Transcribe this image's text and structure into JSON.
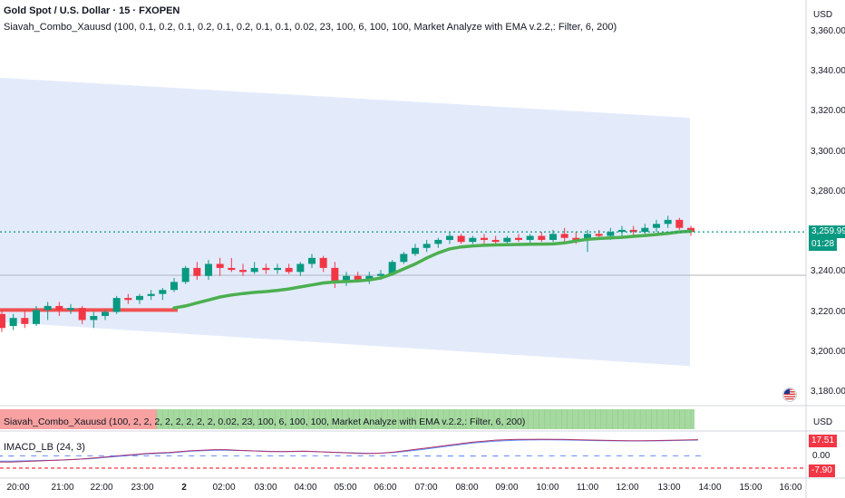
{
  "header": {
    "symbol_title": "Gold Spot / U.S. Dollar · 15 · FXOPEN",
    "indicator_legend": "Siavah_Combo_Xauusd (100, 0.1, 0.2, 0.1, 0.2, 0.1, 0.2, 0.1, 0.1, 0.02, 23, 100, 6, 100, 100, Market Analyze with EMA v.2.2,: Filter, 6, 200)"
  },
  "price_axis": {
    "currency": "USD",
    "ticks": [
      "3,360.00",
      "3,340.00",
      "3,320.00",
      "3,300.00",
      "3,280.00",
      "3,260.00",
      "3,240.00",
      "3,220.00",
      "3,200.00",
      "3,180.00"
    ],
    "last_price": "3,259.99",
    "countdown": "01:28",
    "last_price_color": "#089981"
  },
  "time_axis": {
    "labels": [
      "20:00",
      "21:00",
      "22:00",
      "23:00",
      "2",
      "02:00",
      "03:00",
      "04:00",
      "05:00",
      "06:00",
      "07:00",
      "08:00",
      "09:00",
      "10:00",
      "11:00",
      "12:00",
      "13:00",
      "14:00",
      "15:00",
      "16:00"
    ]
  },
  "pane2": {
    "legend": "Siavah_Combo_Xauusd (100, 2, 2, 2, 2, 2, 2, 2, 2, 0.02, 23, 100, 6, 100, 100, Market Analyze with EMA v.2.2,: Filter, 6, 200)",
    "currency": "USD"
  },
  "pane3": {
    "legend": "IMACD_LB (24, 3)",
    "value_high": "17.51",
    "value_zero": "0.00",
    "value_low": "-7.90"
  },
  "colors": {
    "bull": "#089981",
    "bear": "#f23645",
    "ema": "#4caf50",
    "band_fill": "#e3ebfb",
    "red_line": "#f05050"
  },
  "icons": {
    "flag": "us-flag-icon"
  },
  "chart_data": {
    "type": "candlestick",
    "title": "Gold Spot / U.S. Dollar · 15 · FXOPEN",
    "ylim": [
      3175,
      3365
    ],
    "ohlc": [
      [
        3219,
        3221,
        3210,
        3212
      ],
      [
        3213,
        3219,
        3211,
        3217
      ],
      [
        3217,
        3221,
        3212,
        3214
      ],
      [
        3214,
        3223,
        3213,
        3221
      ],
      [
        3221,
        3225,
        3216,
        3223
      ],
      [
        3223,
        3225,
        3218,
        3221
      ],
      [
        3221,
        3224,
        3219,
        3222
      ],
      [
        3222,
        3223,
        3214,
        3216
      ],
      [
        3216,
        3220,
        3212,
        3218
      ],
      [
        3218,
        3221,
        3216,
        3220
      ],
      [
        3220,
        3228,
        3219,
        3227
      ],
      [
        3227,
        3229,
        3224,
        3226
      ],
      [
        3226,
        3229,
        3224,
        3228
      ],
      [
        3228,
        3231,
        3226,
        3229
      ],
      [
        3229,
        3232,
        3226,
        3231
      ],
      [
        3231,
        3237,
        3230,
        3235
      ],
      [
        3235,
        3243,
        3234,
        3242
      ],
      [
        3242,
        3245,
        3236,
        3238
      ],
      [
        3238,
        3246,
        3236,
        3244
      ],
      [
        3244,
        3247,
        3238,
        3242
      ],
      [
        3242,
        3247,
        3240,
        3241
      ],
      [
        3241,
        3244,
        3238,
        3240
      ],
      [
        3240,
        3245,
        3239,
        3242
      ],
      [
        3242,
        3244,
        3239,
        3241
      ],
      [
        3241,
        3244,
        3239,
        3242
      ],
      [
        3242,
        3244,
        3239,
        3240
      ],
      [
        3240,
        3245,
        3238,
        3244
      ],
      [
        3244,
        3249,
        3242,
        3247
      ],
      [
        3247,
        3248,
        3240,
        3242
      ],
      [
        3242,
        3245,
        3232,
        3235
      ],
      [
        3235,
        3240,
        3233,
        3238
      ],
      [
        3238,
        3240,
        3235,
        3236
      ],
      [
        3236,
        3240,
        3234,
        3238
      ],
      [
        3238,
        3241,
        3236,
        3239
      ],
      [
        3239,
        3246,
        3238,
        3245
      ],
      [
        3245,
        3250,
        3244,
        3249
      ],
      [
        3249,
        3254,
        3248,
        3252
      ],
      [
        3252,
        3256,
        3250,
        3254
      ],
      [
        3254,
        3257,
        3252,
        3256
      ],
      [
        3256,
        3260,
        3254,
        3258
      ],
      [
        3258,
        3259,
        3254,
        3255
      ],
      [
        3255,
        3258,
        3254,
        3257
      ],
      [
        3257,
        3259,
        3254,
        3256
      ],
      [
        3256,
        3258,
        3254,
        3255
      ],
      [
        3255,
        3258,
        3254,
        3257
      ],
      [
        3257,
        3259,
        3255,
        3256
      ],
      [
        3256,
        3259,
        3254,
        3258
      ],
      [
        3258,
        3260,
        3255,
        3256
      ],
      [
        3256,
        3261,
        3255,
        3259
      ],
      [
        3259,
        3262,
        3255,
        3257
      ],
      [
        3257,
        3260,
        3254,
        3256
      ],
      [
        3256,
        3261,
        3250,
        3259
      ],
      [
        3259,
        3261,
        3256,
        3258
      ],
      [
        3258,
        3262,
        3256,
        3260
      ],
      [
        3260,
        3263,
        3258,
        3261
      ],
      [
        3261,
        3263,
        3258,
        3260
      ],
      [
        3260,
        3264,
        3259,
        3262
      ],
      [
        3262,
        3266,
        3260,
        3264
      ],
      [
        3264,
        3268,
        3262,
        3266
      ],
      [
        3266,
        3267,
        3261,
        3262
      ],
      [
        3262,
        3263,
        3258,
        3260
      ]
    ],
    "ema": [
      3222,
      3222,
      3222,
      3222,
      3222,
      3222,
      3222,
      3222,
      3222,
      3222,
      3222,
      3222,
      3222,
      3222,
      3222,
      3222,
      3223,
      3224.5,
      3226,
      3227.5,
      3228.5,
      3229.2,
      3229.8,
      3230.2,
      3230.8,
      3231.5,
      3232.5,
      3233.5,
      3234.5,
      3235,
      3235.2,
      3235.5,
      3236,
      3237,
      3239,
      3241.5,
      3244,
      3247,
      3249.5,
      3251.5,
      3252.5,
      3253,
      3253.3,
      3253.5,
      3253.6,
      3253.7,
      3253.8,
      3253.9,
      3254,
      3254.5,
      3255.5,
      3256.3,
      3256.7,
      3257,
      3257.3,
      3257.8,
      3258.2,
      3258.7,
      3259.3,
      3260,
      3260.3
    ],
    "band_upper_start": 3337,
    "band_upper_end": 3317,
    "band_lower_start": 3215,
    "band_lower_end": 3193,
    "macd_series_a": [
      -6,
      -6,
      -5.5,
      -5,
      -4.5,
      -4,
      -3.5,
      -3,
      -2,
      -1,
      0,
      1,
      2,
      3,
      3.5,
      4,
      5,
      6,
      6.5,
      7,
      7,
      6.5,
      6,
      5.5,
      5,
      5,
      5.2,
      5.5,
      5,
      4.5,
      4,
      3.5,
      3,
      3,
      3.5,
      4.5,
      6,
      7.5,
      9,
      10.5,
      12,
      13.5,
      15,
      16,
      17,
      17.5,
      17.8,
      17.9,
      18,
      17.9,
      17.8,
      17.5,
      17.2,
      17,
      16.8,
      16.6,
      16.5,
      16.5,
      16.6,
      16.8,
      17,
      17.2,
      17.5
    ],
    "macd_series_b": [
      -5,
      -5,
      -4.8,
      -4.5,
      -4.2,
      -4,
      -3.5,
      -3,
      -2.5,
      -1.5,
      -0.5,
      0.5,
      1.5,
      2.5,
      3,
      3.5,
      4.5,
      5.5,
      6,
      6.5,
      6.5,
      6.2,
      6,
      5.6,
      5.2,
      5,
      5,
      5.2,
      5,
      4.6,
      4.2,
      3.8,
      3.4,
      3.2,
      3.4,
      4,
      5.2,
      6.6,
      8,
      9.5,
      11,
      12.5,
      14,
      15,
      16,
      16.6,
      17,
      17.2,
      17.3,
      17.3,
      17.2,
      17,
      16.8,
      16.6,
      16.4,
      16.3,
      16.2,
      16.2,
      16.3,
      16.5,
      16.7,
      16.9,
      17.1
    ]
  }
}
